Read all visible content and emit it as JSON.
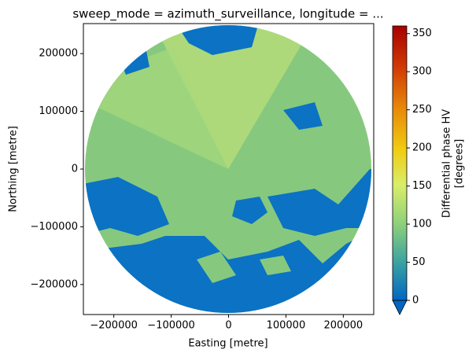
{
  "chart_data": {
    "type": "heatmap",
    "title": "sweep_mode = azimuth_surveillance, longitude = ...",
    "xlabel": "Easting [metre]",
    "ylabel": "Northing [metre]",
    "xlim": [
      -253000,
      253000
    ],
    "ylim": [
      -252000,
      252000
    ],
    "xticks": [
      {
        "value": -200000,
        "label": "−200000"
      },
      {
        "value": -100000,
        "label": "−100000"
      },
      0,
      100000,
      200000
    ],
    "yticks": [
      {
        "value": -200000,
        "label": "−200000"
      },
      {
        "value": -100000,
        "label": "−100000"
      },
      0,
      100000,
      200000
    ],
    "colorbar": {
      "label": [
        "Differential phase HV",
        "[degrees]"
      ],
      "lim": [
        0,
        360
      ],
      "ticks": [
        0,
        50,
        100,
        150,
        200,
        250,
        300,
        350
      ]
    }
  }
}
